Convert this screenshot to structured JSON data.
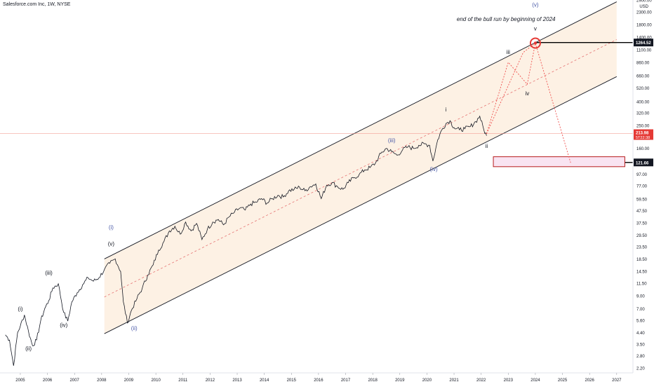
{
  "header": {
    "symbol_title": "Salesforce.com Inc, 1W, NYSE"
  },
  "chart_data": {
    "type": "line",
    "title": "Salesforce.com Inc, 1W, NYSE",
    "scale": "log",
    "currency_label": "USD",
    "xlim": [
      2004.25,
      2027.6
    ],
    "ylim": [
      2.0,
      2900
    ],
    "x_ticks": [
      "2005",
      "2006",
      "2007",
      "2008",
      "2009",
      "2010",
      "2011",
      "2012",
      "2013",
      "2014",
      "2015",
      "2016",
      "2017",
      "2018",
      "2019",
      "2020",
      "2021",
      "2022",
      "2023",
      "2024",
      "2025",
      "2026",
      "2027"
    ],
    "y_ticks": [
      2.2,
      2.8,
      3.5,
      4.4,
      5.6,
      7.0,
      9.0,
      11.5,
      14.5,
      18.5,
      23.5,
      29.5,
      37.5,
      47.5,
      59.5,
      77.0,
      97.0,
      160.0,
      250.0,
      320.0,
      400.0,
      520.0,
      660.0,
      860.0,
      1100.0,
      1400.0,
      1800.0,
      2300.0,
      2900.0
    ],
    "y_tick_labels": [
      "2.20",
      "2.80",
      "3.50",
      "4.40",
      "5.60",
      "7.00",
      "9.00",
      "11.50",
      "14.50",
      "18.50",
      "23.50",
      "29.50",
      "37.50",
      "47.50",
      "59.50",
      "77.00",
      "97.00",
      "160.00",
      "250.00",
      "320.00",
      "400.00",
      "520.00",
      "660.00",
      "860.00",
      "1100.00",
      "1400.00",
      "1800.00",
      "2300.00",
      "2900.00"
    ],
    "series": [
      {
        "x": [
          2004.45,
          2004.6,
          2004.75,
          2004.9,
          2005.0,
          2005.15,
          2005.3,
          2005.45,
          2005.6,
          2005.75,
          2005.9,
          2006.05,
          2006.2,
          2006.4,
          2006.6,
          2006.75,
          2006.9,
          2007.1,
          2007.3,
          2007.5,
          2007.7,
          2007.9,
          2008.1,
          2008.3,
          2008.5,
          2008.7,
          2008.8,
          2008.95,
          2009.1,
          2009.3,
          2009.5,
          2009.7,
          2009.9,
          2010.1,
          2010.3,
          2010.5,
          2010.7,
          2010.9,
          2011.1,
          2011.3,
          2011.5,
          2011.7,
          2011.9,
          2012.1,
          2012.3,
          2012.5,
          2012.7,
          2012.9,
          2013.1,
          2013.3,
          2013.5,
          2013.7,
          2013.9,
          2014.1,
          2014.3,
          2014.5,
          2014.7,
          2014.9,
          2015.1,
          2015.3,
          2015.5,
          2015.7,
          2015.9,
          2016.1,
          2016.3,
          2016.5,
          2016.7,
          2016.9,
          2017.1,
          2017.3,
          2017.5,
          2017.7,
          2017.9,
          2018.1,
          2018.3,
          2018.5,
          2018.7,
          2018.9,
          2019.1,
          2019.3,
          2019.5,
          2019.7,
          2019.9,
          2020.1,
          2020.22,
          2020.4,
          2020.55,
          2020.7,
          2020.85,
          2021.0,
          2021.2,
          2021.4,
          2021.6,
          2021.8,
          2021.95,
          2022.1,
          2022.2
        ],
        "values": [
          4.2,
          3.8,
          2.3,
          4.4,
          5.0,
          6.2,
          4.5,
          3.4,
          3.8,
          5.5,
          7.0,
          8.2,
          10.5,
          11.4,
          6.5,
          5.5,
          8.0,
          9.6,
          11.2,
          12.8,
          12.0,
          12.8,
          15.0,
          17.0,
          18.5,
          14.5,
          8.0,
          5.3,
          6.8,
          8.5,
          10.5,
          13.5,
          16.5,
          22.0,
          26.0,
          32.0,
          35.0,
          30.0,
          38.0,
          32.0,
          37.0,
          27.0,
          33.0,
          38.0,
          40.0,
          36.0,
          42.0,
          46.0,
          50.0,
          48.0,
          54.0,
          56.0,
          60.0,
          55.0,
          60.0,
          64.0,
          62.0,
          70.0,
          72.0,
          75.0,
          70.0,
          76.0,
          80.0,
          60.0,
          78.0,
          82.0,
          76.0,
          72.0,
          82.0,
          90.0,
          96.0,
          105.0,
          110.0,
          120.0,
          145.0,
          160.0,
          150.0,
          140.0,
          155.0,
          165.0,
          160.0,
          170.0,
          175.0,
          170.0,
          125.0,
          190.0,
          230.0,
          260.0,
          275.0,
          240.0,
          230.0,
          235.0,
          245.0,
          270.0,
          300.0,
          230.0,
          205.0
        ]
      }
    ],
    "channel": {
      "upper": {
        "x": [
          2008.1,
          2027.0
        ],
        "y": [
          18.5,
          2800
        ]
      },
      "middle": {
        "x": [
          2008.1,
          2027.0
        ],
        "y": [
          8.8,
          1340
        ]
      },
      "lower": {
        "x": [
          2008.1,
          2027.0
        ],
        "y": [
          4.3,
          650
        ]
      }
    },
    "projection": {
      "path1": {
        "x": [
          2022.2,
          2023.0,
          2023.7,
          2024.0,
          2025.3
        ],
        "y": [
          213,
          860,
          560,
          1250,
          121
        ]
      },
      "path2": {
        "x": [
          2022.2,
          2023.55,
          2024.0
        ],
        "y": [
          213,
          1040,
          1250
        ]
      },
      "target_box": {
        "x": [
          2022.45,
          2027.3
        ],
        "y": [
          112,
          136
        ]
      }
    },
    "horizontal_lines": [
      {
        "label": "1264.52",
        "value": 1264.52,
        "x_start": 2024.0,
        "color": "#000000"
      },
      {
        "label": "121.66",
        "value": 121.66,
        "x_start": 2027.3,
        "color": "#000000"
      },
      {
        "value": 213.98,
        "x_start": 2004.25,
        "color": "#f28b82"
      }
    ],
    "last_price": {
      "label": "213.98",
      "countdown": "5T22:38",
      "value": 213.98,
      "color": "#e53935"
    },
    "wave_labels": [
      {
        "text": "(i)",
        "x": 2005.0,
        "y": 6.7,
        "color": "#131722"
      },
      {
        "text": "(ii)",
        "x": 2005.3,
        "y": 3.1,
        "color": "#131722"
      },
      {
        "text": "(iii)",
        "x": 2006.05,
        "y": 13.6,
        "color": "#131722"
      },
      {
        "text": "(iv)",
        "x": 2006.6,
        "y": 4.9,
        "color": "#131722"
      },
      {
        "text": "(v)",
        "x": 2008.35,
        "y": 24.0,
        "color": "#131722"
      },
      {
        "text": "(i)",
        "x": 2008.35,
        "y": 33.0,
        "color": "#4a5aa8"
      },
      {
        "text": "(ii)",
        "x": 2009.2,
        "y": 4.6,
        "color": "#4a5aa8"
      },
      {
        "text": "(iii)",
        "x": 2018.7,
        "y": 180,
        "color": "#4a5aa8"
      },
      {
        "text": "(iv)",
        "x": 2020.25,
        "y": 103,
        "color": "#4a5aa8"
      },
      {
        "text": "(v)",
        "x": 2024.0,
        "y": 2550,
        "color": "#4a5aa8"
      },
      {
        "text": "i",
        "x": 2020.7,
        "y": 330,
        "color": "#131722"
      },
      {
        "text": "ii",
        "x": 2022.2,
        "y": 162,
        "color": "#131722"
      },
      {
        "text": "iii",
        "x": 2023.0,
        "y": 1010,
        "color": "#131722"
      },
      {
        "text": "iv",
        "x": 2023.7,
        "y": 450,
        "color": "#131722"
      },
      {
        "text": "v",
        "x": 2024.0,
        "y": 1600,
        "color": "#131722"
      }
    ],
    "annotation": {
      "text": "end of the bull run by  beginning of 2024",
      "x": 2021.1,
      "y": 1920
    },
    "legend": "none",
    "grid": false
  },
  "colors": {
    "price_line": "#131722",
    "channel_line": "#131722",
    "channel_fill": "#fdf1e4",
    "middle_line": "#e57373",
    "projection": "#ef5350",
    "target_fill": "#f9e4f2",
    "target_border": "#b71c1c",
    "circle": "#e53935",
    "axis_text": "#131722",
    "axis_border": "#e0e3eb"
  }
}
